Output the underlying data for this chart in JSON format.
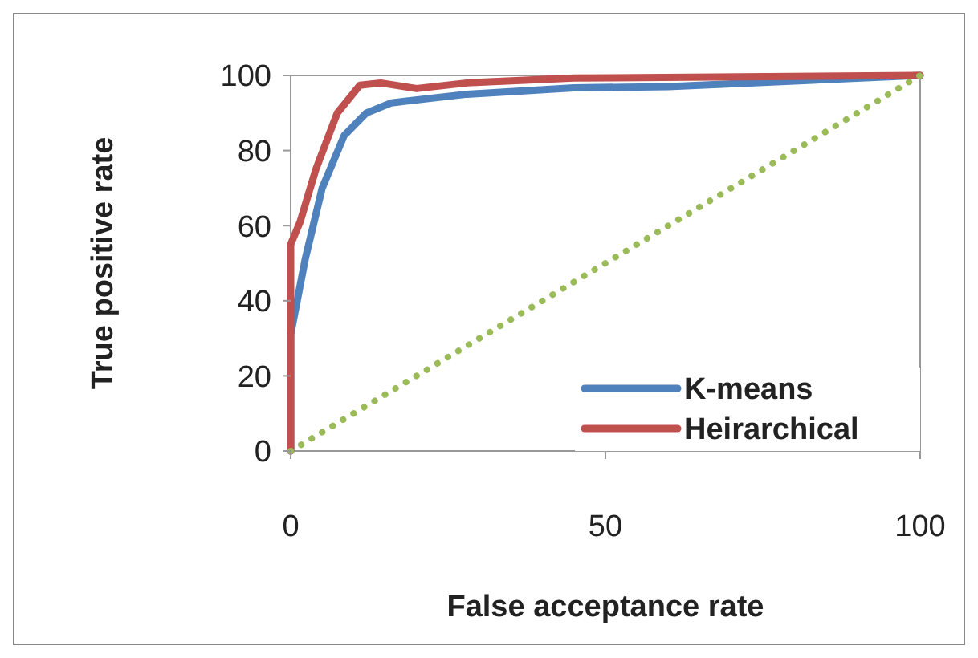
{
  "chart_data": {
    "type": "line",
    "xlabel": "False acceptance rate",
    "ylabel": "True positive rate",
    "xlim": [
      0,
      100
    ],
    "ylim": [
      0,
      100
    ],
    "xticks": [
      0,
      50,
      100
    ],
    "yticks": [
      0,
      20,
      40,
      60,
      80,
      100
    ],
    "grid": false,
    "legend": "bottom right",
    "marker": "none",
    "series": [
      {
        "name": "K-means",
        "color": "#4f81bd",
        "x": [
          0,
          0,
          2.3,
          5,
          8.5,
          12,
          16,
          28,
          45,
          60,
          100
        ],
        "values": [
          0,
          31,
          51,
          70,
          84,
          90,
          92.7,
          95,
          96.7,
          97,
          100
        ]
      },
      {
        "name": "Heirarchical",
        "color": "#c0504d",
        "x": [
          0,
          0,
          1.5,
          4,
          7.4,
          11,
          14.3,
          20,
          28,
          45,
          100
        ],
        "values": [
          0,
          55,
          61,
          75,
          90,
          97.4,
          98,
          96.5,
          98,
          99.3,
          100
        ]
      },
      {
        "color": "#9bbb59",
        "line_style": "dotted",
        "x": [
          0,
          100
        ],
        "values": [
          0,
          100
        ]
      }
    ]
  }
}
